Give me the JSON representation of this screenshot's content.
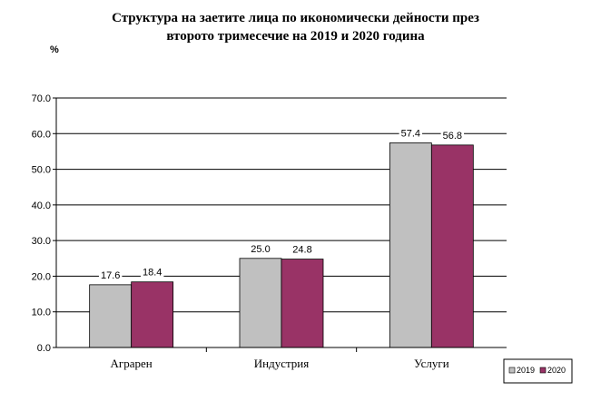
{
  "chart_data": {
    "type": "bar",
    "title_line1": "Структура на заетите лица по икономически дейности през",
    "title_line2": "второто тримесечие на 2019 и 2020 година",
    "ylabel": "%",
    "ylim": [
      0,
      70
    ],
    "yticks": [
      "0.0",
      "10.0",
      "20.0",
      "30.0",
      "40.0",
      "50.0",
      "60.0",
      "70.0"
    ],
    "ytick_values": [
      0,
      10,
      20,
      30,
      40,
      50,
      60,
      70
    ],
    "categories": [
      "Аграрен",
      "Индустрия",
      "Услуги"
    ],
    "series": [
      {
        "name": "2019",
        "values": [
          17.6,
          25.0,
          57.4
        ],
        "labels": [
          "17.6",
          "25.0",
          "57.4"
        ],
        "color": "#c0c0c0"
      },
      {
        "name": "2020",
        "values": [
          18.4,
          24.8,
          56.8
        ],
        "labels": [
          "18.4",
          "24.8",
          "56.8"
        ],
        "color": "#993366"
      }
    ],
    "grid": true,
    "legend_position": "bottom-right"
  }
}
